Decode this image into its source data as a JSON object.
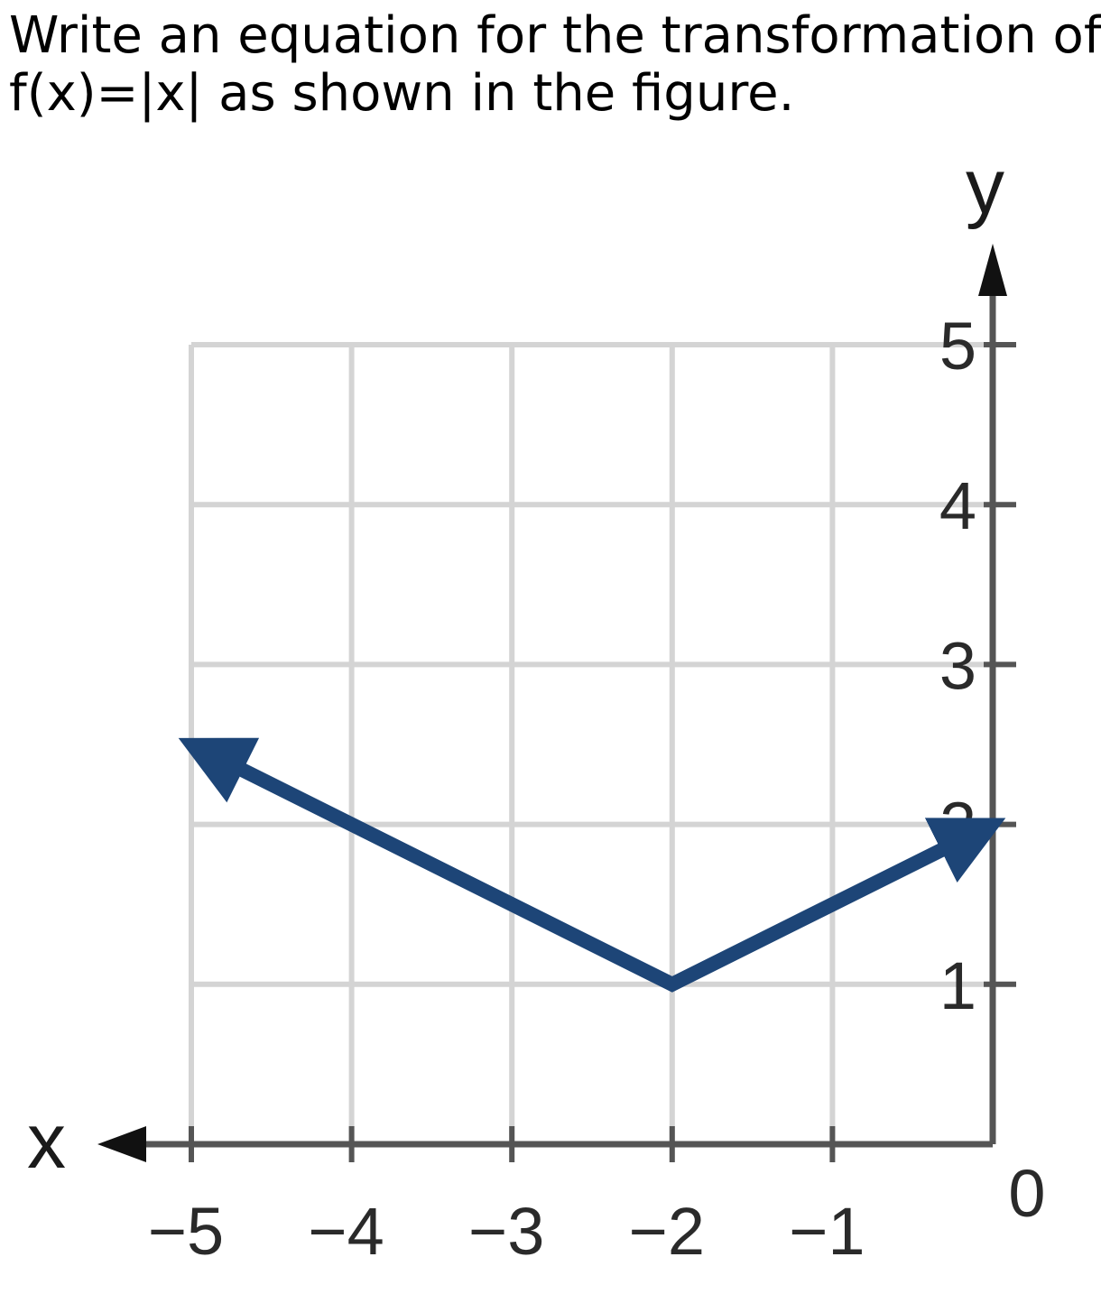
{
  "question": {
    "line1": "Write an equation for the transformation of",
    "line2": "f(x)=|x| as shown in the figure."
  },
  "chart_data": {
    "type": "line",
    "xlabel": "x",
    "ylabel": "y",
    "xlim": [
      -5,
      0
    ],
    "ylim": [
      0,
      5
    ],
    "grid": true,
    "x_ticks": [
      "−5",
      "−4",
      "−3",
      "−2",
      "−1",
      "0"
    ],
    "y_ticks": [
      "1",
      "2",
      "3",
      "4",
      "5"
    ],
    "series": [
      {
        "x": [
          -5,
          -2,
          0
        ],
        "y": [
          2.5,
          1,
          2
        ],
        "arrows": "both",
        "color": "#1d4577"
      }
    ],
    "colors": {
      "grid": "#d4d4d4",
      "axis": "#555555",
      "line": "#1d4577"
    }
  }
}
